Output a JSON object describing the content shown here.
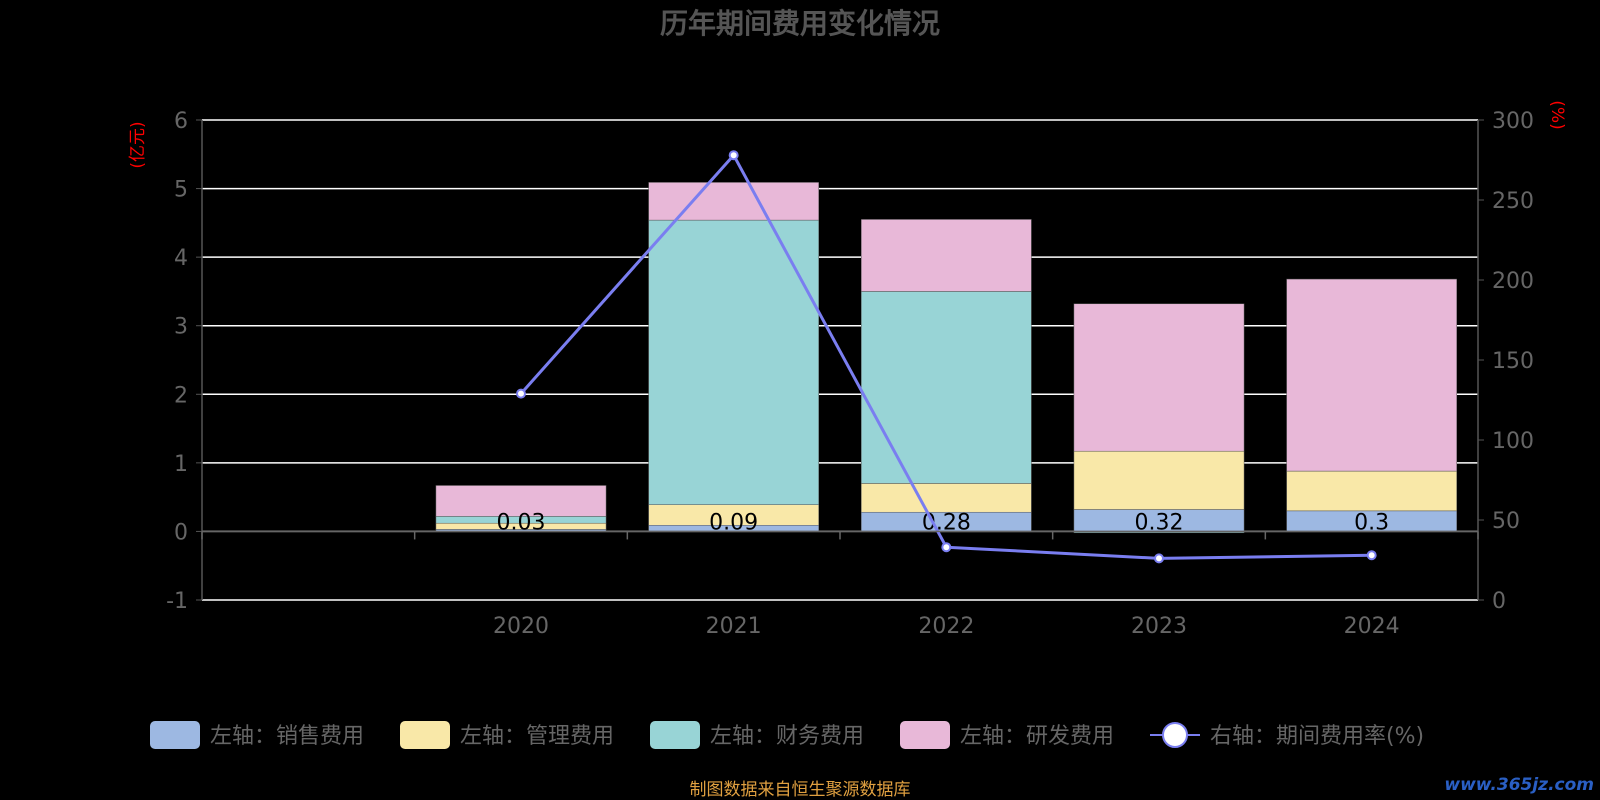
{
  "chart_data": {
    "type": "bar",
    "title": "历年期间费用变化情况",
    "left_axis_unit": "(亿元)",
    "right_axis_unit": "(%)",
    "categories": [
      "",
      "2020",
      "2021",
      "2022",
      "2023",
      "2024"
    ],
    "left_ylim": [
      -1,
      6
    ],
    "left_ticks": [
      "-1",
      "0",
      "1",
      "2",
      "3",
      "4",
      "5",
      "6"
    ],
    "right_ylim": [
      0,
      300
    ],
    "right_ticks": [
      "0",
      "50",
      "100",
      "150",
      "200",
      "250",
      "300"
    ],
    "grid": true,
    "legend_position": "bottom",
    "series": [
      {
        "name": "左轴：销售费用",
        "axis": "left",
        "kind": "bar",
        "color": "#9db8e2",
        "values": [
          null,
          0.03,
          0.09,
          0.28,
          0.32,
          0.3
        ],
        "labels": [
          "",
          "0.03",
          "0.09",
          "0.28",
          "0.32",
          "0.3"
        ]
      },
      {
        "name": "左轴：管理费用",
        "axis": "left",
        "kind": "bar",
        "color": "#f9e8a8",
        "values": [
          null,
          0.09,
          0.3,
          0.42,
          0.85,
          0.58
        ]
      },
      {
        "name": "左轴：财务费用",
        "axis": "left",
        "kind": "bar",
        "color": "#98d4d6",
        "values": [
          null,
          0.1,
          4.15,
          2.8,
          -0.02,
          0.0
        ]
      },
      {
        "name": "左轴：研发费用",
        "axis": "left",
        "kind": "bar",
        "color": "#e8b8d8",
        "values": [
          null,
          0.45,
          0.55,
          1.05,
          2.15,
          2.8
        ]
      },
      {
        "name": "右轴：期间费用率(%)",
        "axis": "right",
        "kind": "line",
        "color": "#7a7ef0",
        "values": [
          null,
          129,
          278,
          33,
          26,
          28
        ]
      }
    ]
  },
  "footer": {
    "source": "制图数据来自恒生聚源数据库",
    "watermark": "www.365jz.com"
  },
  "colors": {
    "axis_text": "#666666",
    "unit_label": "#ff0000",
    "grid": "#ffffff",
    "source_text": "#e0a040",
    "background": "#000000"
  }
}
